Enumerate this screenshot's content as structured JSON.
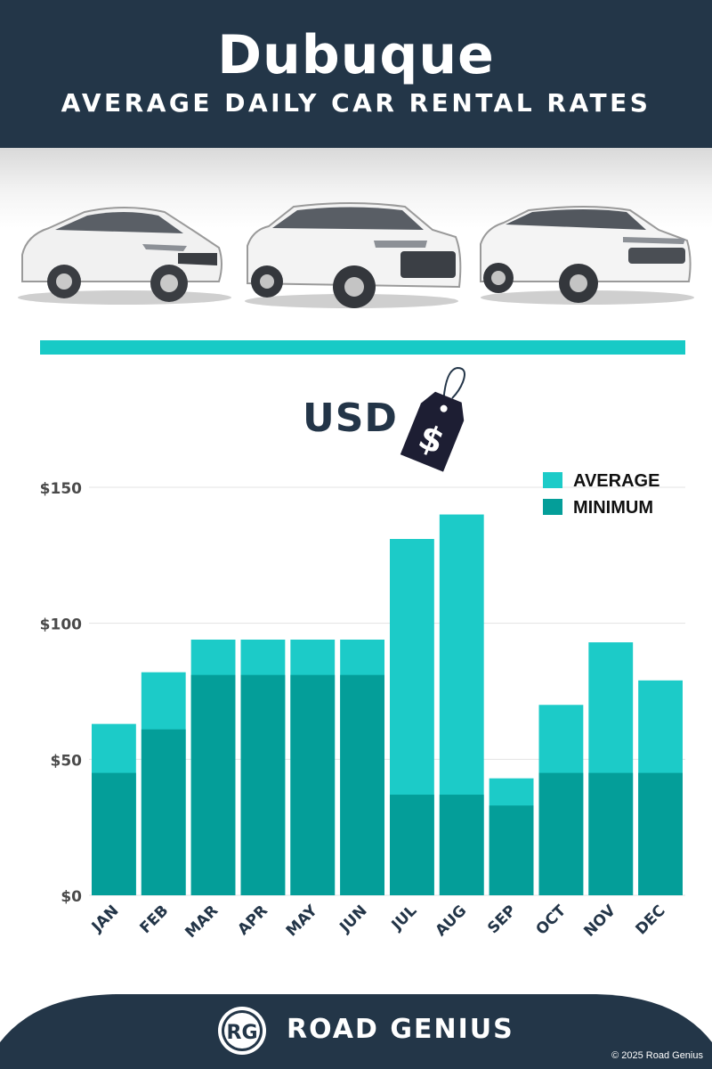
{
  "header": {
    "title": "Dubuque",
    "subtitle": "AVERAGE DAILY CAR RENTAL RATES"
  },
  "currency": {
    "label": "USD",
    "tag_symbol": "$"
  },
  "colors": {
    "navy": "#233648",
    "average": "#1ccbc8",
    "minimum": "#049e99",
    "rule": "#18cac6"
  },
  "chart_data": {
    "type": "bar",
    "categories": [
      "JAN",
      "FEB",
      "MAR",
      "APR",
      "MAY",
      "JUN",
      "JUL",
      "AUG",
      "SEP",
      "OCT",
      "NOV",
      "DEC"
    ],
    "series": [
      {
        "name": "AVERAGE",
        "values": [
          63,
          82,
          94,
          94,
          94,
          94,
          131,
          140,
          43,
          70,
          93,
          79
        ]
      },
      {
        "name": "MINIMUM",
        "values": [
          45,
          61,
          81,
          81,
          81,
          81,
          37,
          37,
          33,
          45,
          45,
          45
        ]
      }
    ],
    "yticks": [
      "$0",
      "$50",
      "$100",
      "$150"
    ],
    "ytick_values": [
      0,
      50,
      100,
      150
    ],
    "ylim": [
      0,
      150
    ],
    "grid": true,
    "legend_position": "top-right",
    "overlay": true
  },
  "footer": {
    "logo_text": "RG",
    "brand": "ROAD GENIUS",
    "copyright": "© 2025 Road Genius"
  }
}
